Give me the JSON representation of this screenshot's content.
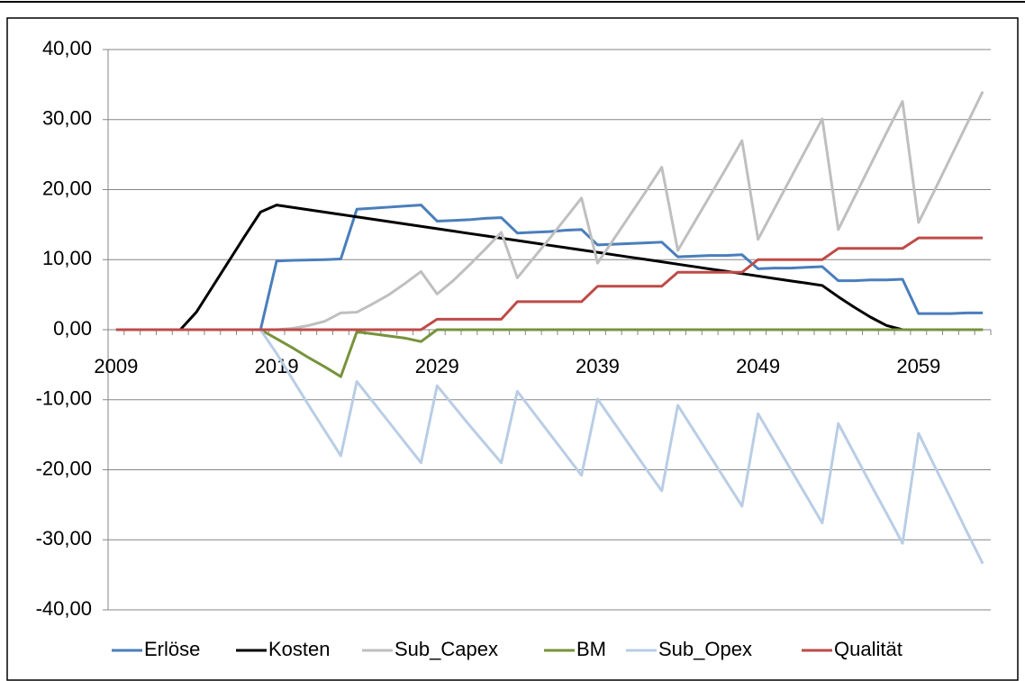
{
  "chart_data": {
    "type": "line",
    "categories": [
      "2009",
      null,
      null,
      null,
      null,
      null,
      null,
      null,
      null,
      null,
      "2019",
      null,
      null,
      null,
      null,
      null,
      null,
      null,
      null,
      null,
      "2029",
      null,
      null,
      null,
      null,
      null,
      null,
      null,
      null,
      null,
      "2039",
      null,
      null,
      null,
      null,
      null,
      null,
      null,
      null,
      null,
      "2049",
      null,
      null,
      null,
      null,
      null,
      null,
      null,
      null,
      null,
      "2059",
      null,
      null,
      null,
      null
    ],
    "ylim": [
      -40,
      40
    ],
    "yticks": [
      {
        "value": -40,
        "label": "-40,00"
      },
      {
        "value": -30,
        "label": "-30,00"
      },
      {
        "value": -20,
        "label": "-20,00"
      },
      {
        "value": -10,
        "label": "-10,00"
      },
      {
        "value": 0,
        "label": "0,00"
      },
      {
        "value": 10,
        "label": "10,00"
      },
      {
        "value": 20,
        "label": "20,00"
      },
      {
        "value": 30,
        "label": "30,00"
      },
      {
        "value": 40,
        "label": "40,00"
      }
    ],
    "grid": true,
    "legend": "bottom",
    "series": [
      {
        "name": "Erlöse",
        "color": "#4a7ebb",
        "values": [
          0,
          0,
          0,
          0,
          0,
          0,
          0,
          0,
          0,
          0,
          9.8,
          9.9,
          9.95,
          10.0,
          10.1,
          17.2,
          17.35,
          17.5,
          17.65,
          17.8,
          15.5,
          15.6,
          15.7,
          15.9,
          16.0,
          13.8,
          13.9,
          14.0,
          14.2,
          14.3,
          12.1,
          12.2,
          12.3,
          12.4,
          12.5,
          10.4,
          10.5,
          10.6,
          10.6,
          10.7,
          8.7,
          8.8,
          8.8,
          8.9,
          9.0,
          7.0,
          7.0,
          7.1,
          7.1,
          7.2,
          2.3,
          2.3,
          2.3,
          2.4,
          2.4
        ]
      },
      {
        "name": "Kosten",
        "color": "#000000",
        "values": [
          0,
          0,
          0,
          0,
          0,
          2.5,
          6.1,
          9.7,
          13.3,
          16.8,
          17.8,
          17.46,
          17.12,
          16.79,
          16.45,
          16.11,
          15.77,
          15.43,
          15.1,
          14.76,
          14.42,
          14.08,
          13.74,
          13.41,
          13.07,
          12.73,
          12.39,
          12.05,
          11.72,
          11.38,
          11.04,
          10.7,
          10.36,
          10.03,
          9.69,
          9.35,
          9.01,
          8.67,
          8.34,
          8.0,
          7.66,
          7.32,
          6.98,
          6.65,
          6.31,
          4.7,
          3.2,
          1.8,
          0.6,
          0,
          0,
          0,
          0,
          0,
          0
        ]
      },
      {
        "name": "Sub_Capex",
        "color": "#bfbfbf",
        "values": [
          0,
          0,
          0,
          0,
          0,
          0,
          0,
          0,
          0,
          0,
          0,
          0.2,
          0.6,
          1.2,
          2.4,
          2.5,
          3.7,
          5.0,
          6.6,
          8.3,
          5.1,
          7.0,
          9.2,
          11.5,
          13.9,
          7.4,
          10.2,
          13.0,
          15.9,
          18.8,
          9.5,
          12.9,
          16.3,
          19.7,
          23.2,
          11.3,
          15.2,
          19.1,
          23.0,
          27.0,
          12.9,
          17.2,
          21.5,
          25.8,
          30.1,
          14.3,
          18.9,
          23.5,
          28.1,
          32.6,
          15.3,
          19.9,
          24.6,
          29.3,
          34.0
        ]
      },
      {
        "name": "BM",
        "color": "#77933c",
        "values": [
          0,
          0,
          0,
          0,
          0,
          0,
          0,
          0,
          0,
          0,
          -1.3,
          -2.6,
          -4.0,
          -5.3,
          -6.7,
          -0.3,
          -0.6,
          -0.9,
          -1.2,
          -1.7,
          0,
          0,
          0,
          0,
          0,
          0,
          0,
          0,
          0,
          0,
          0,
          0,
          0,
          0,
          0,
          0,
          0,
          0,
          0,
          0,
          0,
          0,
          0,
          0,
          0,
          0,
          0,
          0,
          0,
          0,
          0,
          0,
          0,
          0,
          0
        ]
      },
      {
        "name": "Sub_Opex",
        "color": "#b9cde5",
        "values": [
          0,
          0,
          0,
          0,
          0,
          0,
          0,
          0,
          0,
          0,
          -3.4,
          -7.1,
          -10.8,
          -14.4,
          -18.0,
          -7.4,
          -10.3,
          -13.2,
          -16.1,
          -19.0,
          -8.0,
          -10.8,
          -13.6,
          -16.3,
          -19.0,
          -8.8,
          -11.8,
          -14.8,
          -17.8,
          -20.8,
          -9.9,
          -13.2,
          -16.5,
          -19.8,
          -23.0,
          -10.8,
          -14.4,
          -18.0,
          -21.6,
          -25.2,
          -12.0,
          -15.9,
          -19.8,
          -23.7,
          -27.6,
          -13.4,
          -17.7,
          -22.0,
          -26.2,
          -30.5,
          -14.8,
          -19.5,
          -24.1,
          -28.8,
          -33.4
        ]
      },
      {
        "name": "Qualität",
        "color": "#be4b48",
        "values": [
          0,
          0,
          0,
          0,
          0,
          0,
          0,
          0,
          0,
          0,
          0,
          0,
          0,
          0,
          0,
          0,
          0,
          0,
          0,
          0,
          1.5,
          1.5,
          1.5,
          1.5,
          1.5,
          4.0,
          4.0,
          4.0,
          4.0,
          4.0,
          6.2,
          6.2,
          6.2,
          6.2,
          6.2,
          8.2,
          8.2,
          8.2,
          8.2,
          8.2,
          10.0,
          10.0,
          10.0,
          10.0,
          10.0,
          11.6,
          11.6,
          11.6,
          11.6,
          11.6,
          13.1,
          13.1,
          13.1,
          13.1,
          13.1
        ]
      }
    ]
  }
}
